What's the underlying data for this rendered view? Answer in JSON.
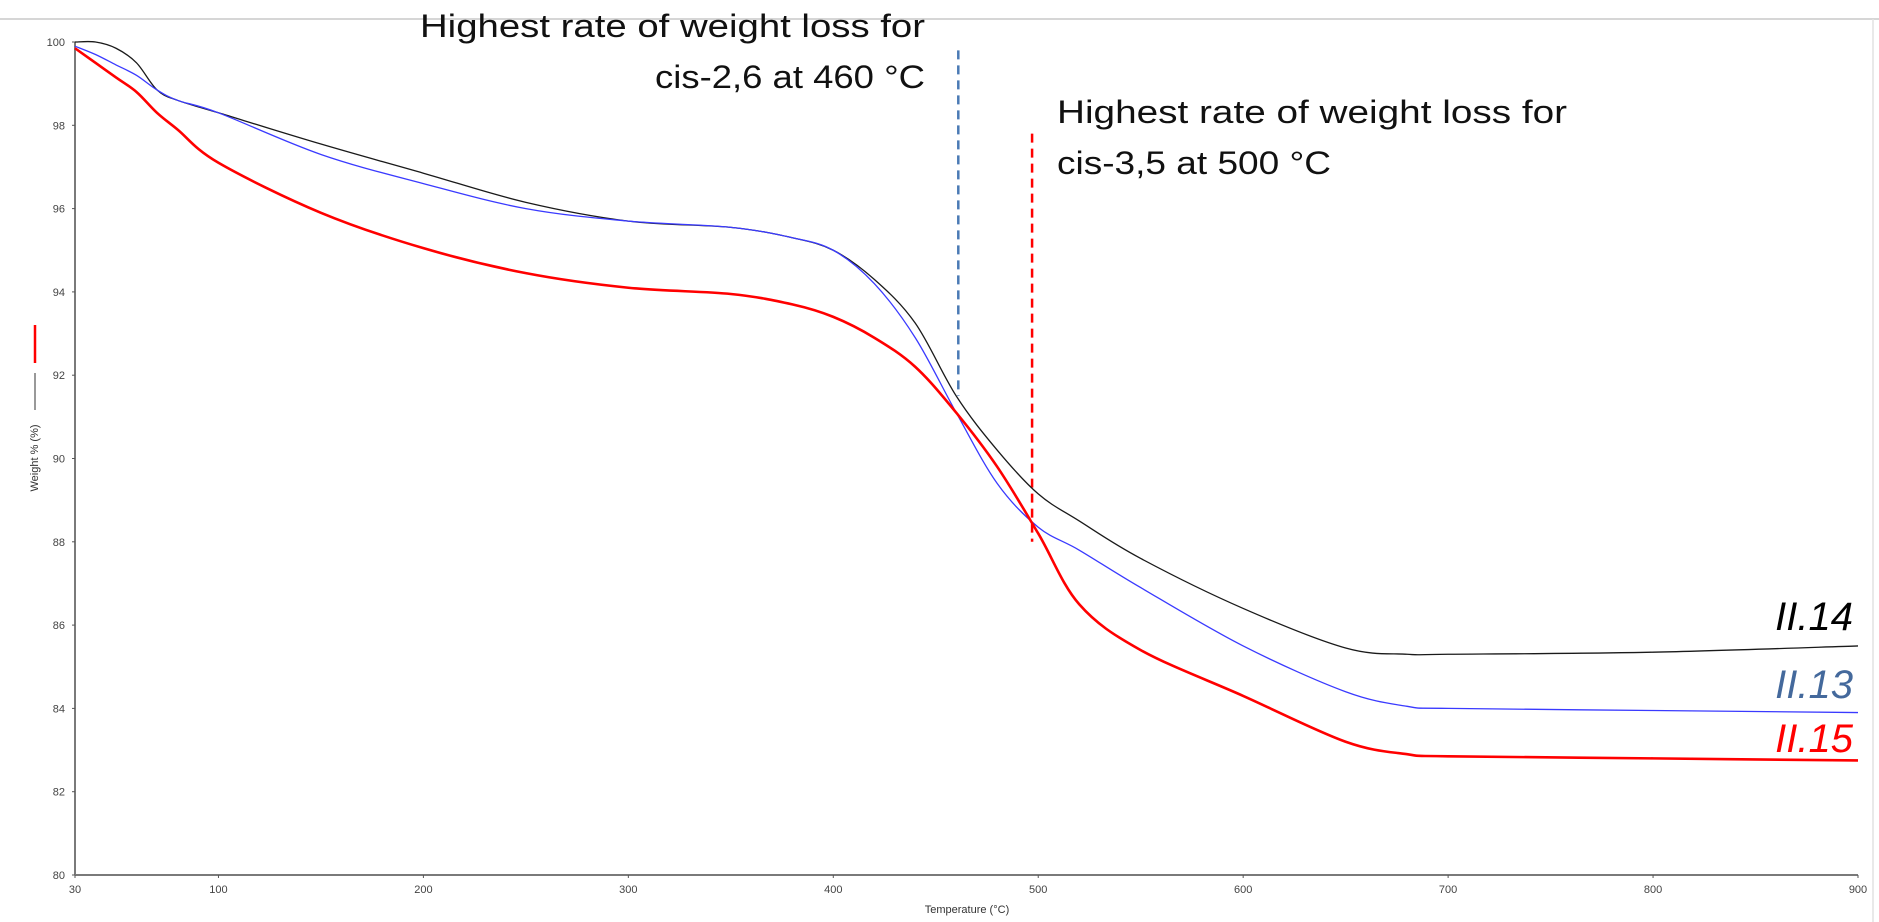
{
  "chart_data": {
    "type": "line",
    "title": "",
    "xlabel": "Temperature (°C)",
    "ylabel": "Weight % (%)",
    "xlim": [
      30,
      900
    ],
    "ylim": [
      80,
      100
    ],
    "x_ticks": [
      30,
      100,
      200,
      300,
      400,
      500,
      600,
      700,
      800,
      900
    ],
    "y_ticks": [
      80,
      82,
      84,
      86,
      88,
      90,
      92,
      94,
      96,
      98,
      100
    ],
    "grid": false,
    "x": [
      30,
      40,
      50,
      60,
      70,
      80,
      100,
      150,
      200,
      250,
      300,
      350,
      380,
      400,
      420,
      440,
      460,
      480,
      500,
      520,
      550,
      600,
      650,
      680,
      700,
      800,
      900
    ],
    "series": [
      {
        "name": "II.14",
        "color": "#1a1a1a",
        "label_color": "#000000",
        "values": [
          100,
          100,
          99.85,
          99.5,
          98.85,
          98.6,
          98.3,
          97.55,
          96.85,
          96.15,
          95.7,
          95.55,
          95.3,
          95.0,
          94.3,
          93.25,
          91.5,
          90.2,
          89.15,
          88.5,
          87.6,
          86.4,
          85.45,
          85.3,
          85.3,
          85.35,
          85.5
        ]
      },
      {
        "name": "II.13",
        "color": "#3a3aff",
        "label_color": "#44699c",
        "values": [
          99.9,
          99.7,
          99.45,
          99.2,
          98.85,
          98.6,
          98.3,
          97.3,
          96.6,
          96.0,
          95.7,
          95.55,
          95.3,
          95.0,
          94.2,
          92.9,
          91.1,
          89.4,
          88.35,
          87.8,
          86.9,
          85.5,
          84.4,
          84.05,
          84.0,
          83.95,
          83.9
        ]
      },
      {
        "name": "II.15",
        "color": "#ff0000",
        "label_color": "#ff0000",
        "values": [
          99.85,
          99.5,
          99.15,
          98.8,
          98.3,
          97.9,
          97.1,
          95.9,
          95.05,
          94.45,
          94.1,
          93.95,
          93.7,
          93.4,
          92.9,
          92.2,
          91.1,
          89.8,
          88.2,
          86.5,
          85.4,
          84.3,
          83.2,
          82.9,
          82.85,
          82.8,
          82.75
        ]
      }
    ],
    "annotations": [
      {
        "lines": [
          "Highest rate of weight loss for",
          "cis-2,6 at 460 °C"
        ],
        "marker_x": 461,
        "marker_y_range": [
          91.5,
          99.8
        ],
        "marker_color": "#4a7ab5",
        "marker_style": "dashed"
      },
      {
        "lines": [
          "Highest rate of weight loss for",
          "cis-3,5 at 500 °C"
        ],
        "marker_x": 497,
        "marker_y_range": [
          88,
          97.8
        ],
        "marker_color": "#ff0000",
        "marker_style": "dashed"
      }
    ],
    "ylabel_legend_colors": [
      "#ff0000",
      "#333333"
    ]
  }
}
